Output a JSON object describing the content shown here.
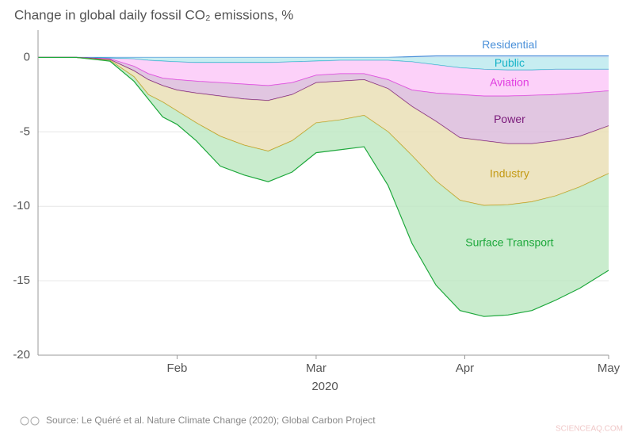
{
  "chart_data": {
    "type": "stacked_area",
    "title": "Change in global daily fossil CO₂ emissions, %",
    "x_label": "2020",
    "source": "Source: Le Quéré et al. Nature Climate Change (2020); Global Carbon Project",
    "watermark": "SCIENCEAQ.COM",
    "x": [
      2,
      10,
      17,
      22,
      25,
      28,
      31,
      35,
      40,
      45,
      50,
      55,
      60,
      65,
      70,
      75,
      80,
      85,
      90,
      95,
      100,
      105,
      110,
      115,
      121
    ],
    "xlim": [
      2,
      121
    ],
    "xticks": [
      {
        "value": 31,
        "label": "Feb"
      },
      {
        "value": 60,
        "label": "Mar"
      },
      {
        "value": 91,
        "label": "Apr"
      },
      {
        "value": 121,
        "label": "May"
      }
    ],
    "ylim": [
      -20,
      1.3
    ],
    "yticks": [
      -20,
      -15,
      -10,
      -5,
      0
    ],
    "grid": true,
    "series": [
      {
        "name": "Residential",
        "color": "#4a90d9",
        "fill": "#cfe3f7",
        "values": [
          0,
          0,
          0,
          0,
          0,
          0,
          0,
          0,
          0,
          0,
          0,
          0,
          0,
          0,
          0,
          0,
          0.05,
          0.1,
          0.1,
          0.1,
          0.1,
          0.1,
          0.1,
          0.1,
          0.1
        ]
      },
      {
        "name": "Public",
        "color": "#17b3c8",
        "fill": "#b9e8ee",
        "values": [
          0,
          0,
          -0.05,
          -0.1,
          -0.2,
          -0.25,
          -0.3,
          -0.35,
          -0.35,
          -0.35,
          -0.35,
          -0.3,
          -0.25,
          -0.2,
          -0.2,
          -0.2,
          -0.3,
          -0.5,
          -0.7,
          -0.8,
          -0.85,
          -0.85,
          -0.8,
          -0.8,
          -0.8
        ]
      },
      {
        "name": "Aviation",
        "color": "#e03ce0",
        "fill": "#fbc6f7",
        "values": [
          0,
          0,
          -0.05,
          -0.5,
          -0.9,
          -1.15,
          -1.2,
          -1.25,
          -1.35,
          -1.45,
          -1.55,
          -1.4,
          -0.95,
          -0.9,
          -0.9,
          -1.3,
          -1.9,
          -1.9,
          -1.8,
          -1.8,
          -1.75,
          -1.7,
          -1.7,
          -1.6,
          -1.45
        ]
      },
      {
        "name": "Power",
        "color": "#7a1a7a",
        "fill": "#d9b8d9",
        "values": [
          0,
          0,
          -0.05,
          -0.3,
          -0.4,
          -0.5,
          -0.7,
          -0.8,
          -0.9,
          -1.0,
          -1.0,
          -0.8,
          -0.5,
          -0.5,
          -0.4,
          -0.6,
          -1.1,
          -1.9,
          -2.9,
          -3.0,
          -3.2,
          -3.25,
          -3.1,
          -2.9,
          -2.35
        ]
      },
      {
        "name": "Industry",
        "color": "#c49a14",
        "fill": "#e9ddb2",
        "values": [
          0,
          0,
          -0.05,
          -0.4,
          -1.0,
          -1.1,
          -1.4,
          -2.0,
          -2.7,
          -3.1,
          -3.4,
          -3.1,
          -2.7,
          -2.6,
          -2.4,
          -2.9,
          -3.3,
          -4.0,
          -4.2,
          -4.35,
          -4.1,
          -3.9,
          -3.7,
          -3.4,
          -3.2
        ]
      },
      {
        "name": "Surface Transport",
        "color": "#1ea83c",
        "fill": "#bce7c0",
        "values": [
          0,
          0,
          -0.05,
          -0.3,
          -0.3,
          -1.0,
          -0.9,
          -1.2,
          -2.0,
          -2.0,
          -2.05,
          -2.1,
          -2.0,
          -2.0,
          -2.1,
          -3.6,
          -5.9,
          -7.0,
          -7.4,
          -7.45,
          -7.4,
          -7.3,
          -7.0,
          -6.8,
          -6.5
        ]
      }
    ]
  }
}
